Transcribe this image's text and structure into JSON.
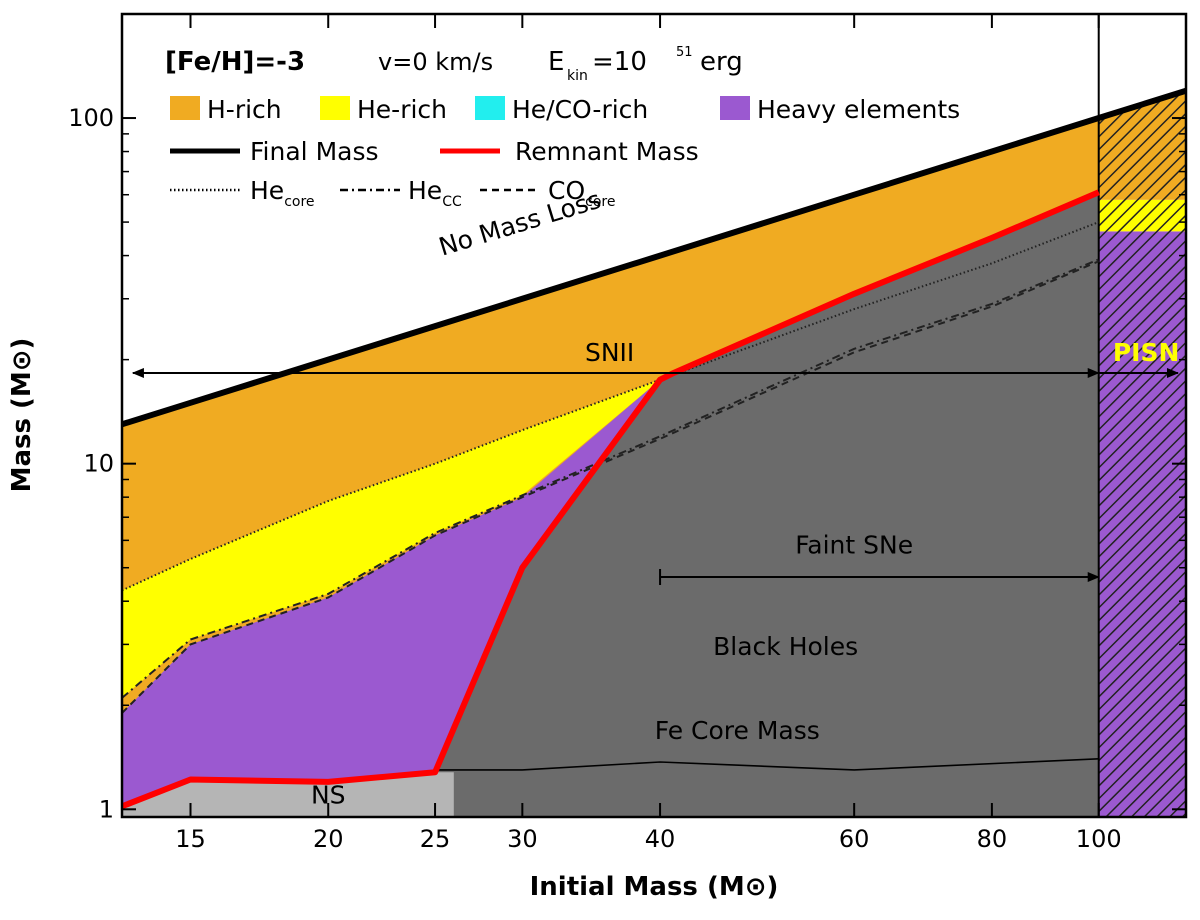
{
  "chart_data": {
    "type": "area",
    "xlabel": "Initial Mass (M⊙)",
    "ylabel": "Mass (M⊙)",
    "x_scale": "log",
    "y_scale": "log",
    "xlim": [
      13,
      120
    ],
    "ylim": [
      0.95,
      200
    ],
    "x_ticks": [
      15,
      20,
      25,
      30,
      40,
      60,
      80,
      100
    ],
    "y_ticks": [
      1,
      10,
      100
    ],
    "header": {
      "feh": "[Fe/H]=-3",
      "vel": "v=0 km/s",
      "ekin_base": "E",
      "ekin_sub": "kin",
      "ekin_val": "=10",
      "ekin_exp": "51",
      "ekin_unit": "erg"
    },
    "legend": {
      "fills": [
        {
          "name": "H-rich",
          "color": "#f0ab22"
        },
        {
          "name": "He-rich",
          "color": "#ffff00"
        },
        {
          "name": "He/CO-rich",
          "color": "#22eeee"
        },
        {
          "name": "Heavy elements",
          "color": "#9b59d0"
        }
      ],
      "lines": [
        {
          "name": "Final Mass",
          "color": "#000000"
        },
        {
          "name": "Remnant Mass",
          "color": "#ff0000"
        }
      ],
      "cores": [
        {
          "base": "He",
          "sub": "core",
          "style": "dotted"
        },
        {
          "base": "He",
          "sub": "CC",
          "style": "dashdot"
        },
        {
          "base": "CO",
          "sub": "core",
          "style": "dashed"
        }
      ]
    },
    "series": [
      {
        "name": "Final Mass",
        "x": [
          13,
          15,
          20,
          25,
          30,
          40,
          60,
          80,
          100,
          120
        ],
        "y": [
          13,
          15,
          20,
          25,
          30,
          40,
          60,
          80,
          100,
          120
        ]
      },
      {
        "name": "Remnant Mass",
        "x": [
          13,
          15,
          20,
          25,
          30,
          40,
          41,
          60,
          80,
          100
        ],
        "y": [
          1.02,
          1.22,
          1.2,
          1.28,
          5.0,
          17.5,
          18.2,
          31,
          45,
          61
        ]
      },
      {
        "name": "Hecore",
        "x": [
          13,
          15,
          20,
          25,
          30,
          40,
          60,
          80,
          100
        ],
        "y": [
          4.3,
          5.3,
          7.8,
          10.0,
          12.5,
          17.5,
          28,
          38,
          50
        ]
      },
      {
        "name": "HeCC",
        "x": [
          13,
          15,
          20,
          25,
          30,
          40,
          60,
          80,
          100
        ],
        "y": [
          2.1,
          3.1,
          4.2,
          6.3,
          8.1,
          12.0,
          21.5,
          29,
          39
        ]
      },
      {
        "name": "COcore",
        "x": [
          13,
          15,
          20,
          25,
          30,
          40,
          60,
          80,
          100
        ],
        "y": [
          1.9,
          3.0,
          4.1,
          6.2,
          8.0,
          11.8,
          21.0,
          28.5,
          38.5
        ]
      },
      {
        "name": "Fe Core Mass",
        "x": [
          25,
          30,
          40,
          60,
          100
        ],
        "y": [
          1.3,
          1.3,
          1.37,
          1.3,
          1.4
        ]
      }
    ],
    "regions": {
      "ns_max_mass": 26,
      "pisn_min_mass": 100,
      "pisn_fills": [
        {
          "color": "#9b59d0",
          "y": [
            0.95,
            47
          ]
        },
        {
          "color": "#ffff00",
          "y": [
            47,
            58
          ]
        },
        {
          "color": "#f0ab22",
          "y": [
            58,
            120
          ]
        }
      ]
    },
    "annotations": [
      {
        "text": "No Mass Loss",
        "x": 30,
        "y": 47,
        "rotate": -17,
        "color": "#000000"
      },
      {
        "text": "SNII",
        "x": 36,
        "y": 19.8,
        "color": "#000000"
      },
      {
        "text": "PISN",
        "x": 103,
        "y": 19.8,
        "color": "#ffff00"
      },
      {
        "text": "Faint SNe",
        "x": 60,
        "y": 5.5,
        "color": "#000000"
      },
      {
        "text": "Black Holes",
        "x": 52,
        "y": 2.8,
        "color": "#000000"
      },
      {
        "text": "Fe Core Mass",
        "x": 47,
        "y": 1.6,
        "color": "#000000"
      },
      {
        "text": "NS",
        "x": 20,
        "y": 1.04,
        "color": "#000000"
      }
    ],
    "arrows": [
      {
        "name": "SNII",
        "x": [
          13.3,
          100
        ],
        "y": 18.3
      },
      {
        "name": "PISN",
        "x": [
          100,
          118
        ],
        "y": 18.3
      },
      {
        "name": "Faint SNe",
        "x": [
          40,
          100
        ],
        "y": 4.7
      }
    ],
    "colors": {
      "bh": "#6b6b6b",
      "ns": "#b5b5b5",
      "h_rich": "#f0ab22",
      "he_rich": "#ffff00",
      "heco_rich": "#22eeee",
      "heavy": "#9b59d0",
      "remnant": "#ff0000",
      "final": "#000000"
    }
  }
}
